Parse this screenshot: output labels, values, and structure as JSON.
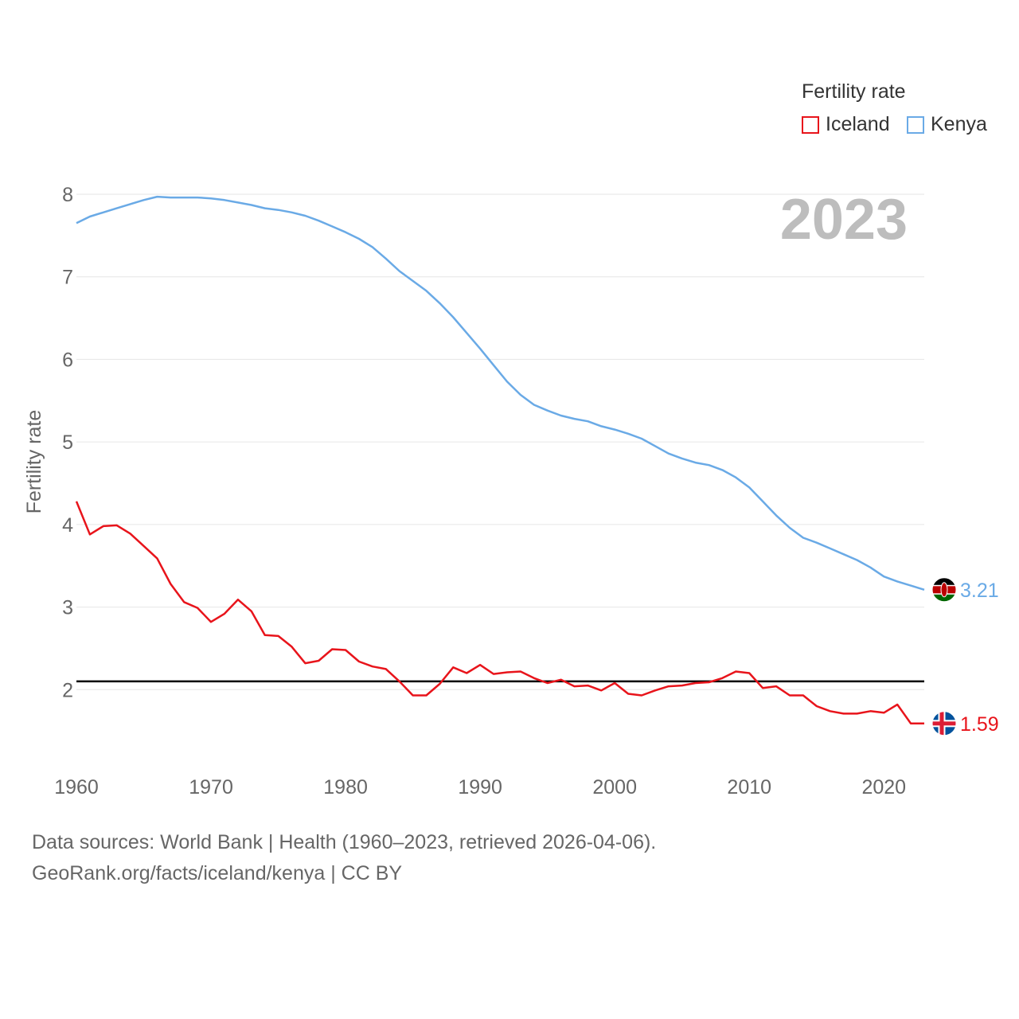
{
  "chart_data": {
    "type": "line",
    "year_label": "2023",
    "ylabel": "Fertility rate",
    "xlabel": "",
    "legend": {
      "title": "Fertility rate",
      "placement": "top-right"
    },
    "xlim": [
      1960,
      2023
    ],
    "ylim": [
      1.0,
      8.0
    ],
    "x_ticks": [
      1960,
      1970,
      1980,
      1990,
      2000,
      2010,
      2020
    ],
    "y_ticks": [
      2,
      3,
      4,
      5,
      6,
      7,
      8
    ],
    "grid": true,
    "reference_line": {
      "value": 2.1,
      "color": "#000000"
    },
    "x": [
      1960,
      1961,
      1962,
      1963,
      1964,
      1965,
      1966,
      1967,
      1968,
      1969,
      1970,
      1971,
      1972,
      1973,
      1974,
      1975,
      1976,
      1977,
      1978,
      1979,
      1980,
      1981,
      1982,
      1983,
      1984,
      1985,
      1986,
      1987,
      1988,
      1989,
      1990,
      1991,
      1992,
      1993,
      1994,
      1995,
      1996,
      1997,
      1998,
      1999,
      2000,
      2001,
      2002,
      2003,
      2004,
      2005,
      2006,
      2007,
      2008,
      2009,
      2010,
      2011,
      2012,
      2013,
      2014,
      2015,
      2016,
      2017,
      2018,
      2019,
      2020,
      2021,
      2022,
      2023
    ],
    "series": [
      {
        "name": "Iceland",
        "color": "#e8141b",
        "end_label": "1.59",
        "flag": "iceland-flag",
        "values": [
          4.28,
          3.88,
          3.98,
          3.99,
          3.89,
          3.74,
          3.59,
          3.28,
          3.06,
          2.99,
          2.82,
          2.92,
          3.09,
          2.95,
          2.66,
          2.65,
          2.52,
          2.32,
          2.35,
          2.49,
          2.48,
          2.34,
          2.28,
          2.25,
          2.1,
          1.93,
          1.93,
          2.07,
          2.27,
          2.2,
          2.3,
          2.19,
          2.21,
          2.22,
          2.14,
          2.08,
          2.12,
          2.04,
          2.05,
          1.99,
          2.08,
          1.95,
          1.93,
          1.99,
          2.04,
          2.05,
          2.08,
          2.09,
          2.14,
          2.22,
          2.2,
          2.02,
          2.04,
          1.93,
          1.93,
          1.8,
          1.74,
          1.71,
          1.71,
          1.74,
          1.72,
          1.82,
          1.59,
          1.59
        ]
      },
      {
        "name": "Kenya",
        "color": "#6aaae6",
        "end_label": "3.21",
        "flag": "kenya-flag",
        "values": [
          7.65,
          7.73,
          7.78,
          7.83,
          7.88,
          7.93,
          7.97,
          7.96,
          7.96,
          7.96,
          7.95,
          7.93,
          7.9,
          7.87,
          7.83,
          7.81,
          7.78,
          7.74,
          7.68,
          7.61,
          7.54,
          7.46,
          7.36,
          7.22,
          7.07,
          6.95,
          6.83,
          6.68,
          6.51,
          6.32,
          6.13,
          5.93,
          5.73,
          5.57,
          5.45,
          5.38,
          5.32,
          5.28,
          5.25,
          5.19,
          5.15,
          5.1,
          5.04,
          4.95,
          4.86,
          4.8,
          4.75,
          4.72,
          4.66,
          4.57,
          4.45,
          4.28,
          4.11,
          3.96,
          3.84,
          3.78,
          3.71,
          3.64,
          3.57,
          3.48,
          3.37,
          3.31,
          3.26,
          3.21
        ]
      }
    ]
  },
  "footer": {
    "line1": "Data sources: World Bank | Health (1960–2023, retrieved 2026-04-06).",
    "line2": "GeoRank.org/facts/iceland/kenya | CC BY"
  }
}
